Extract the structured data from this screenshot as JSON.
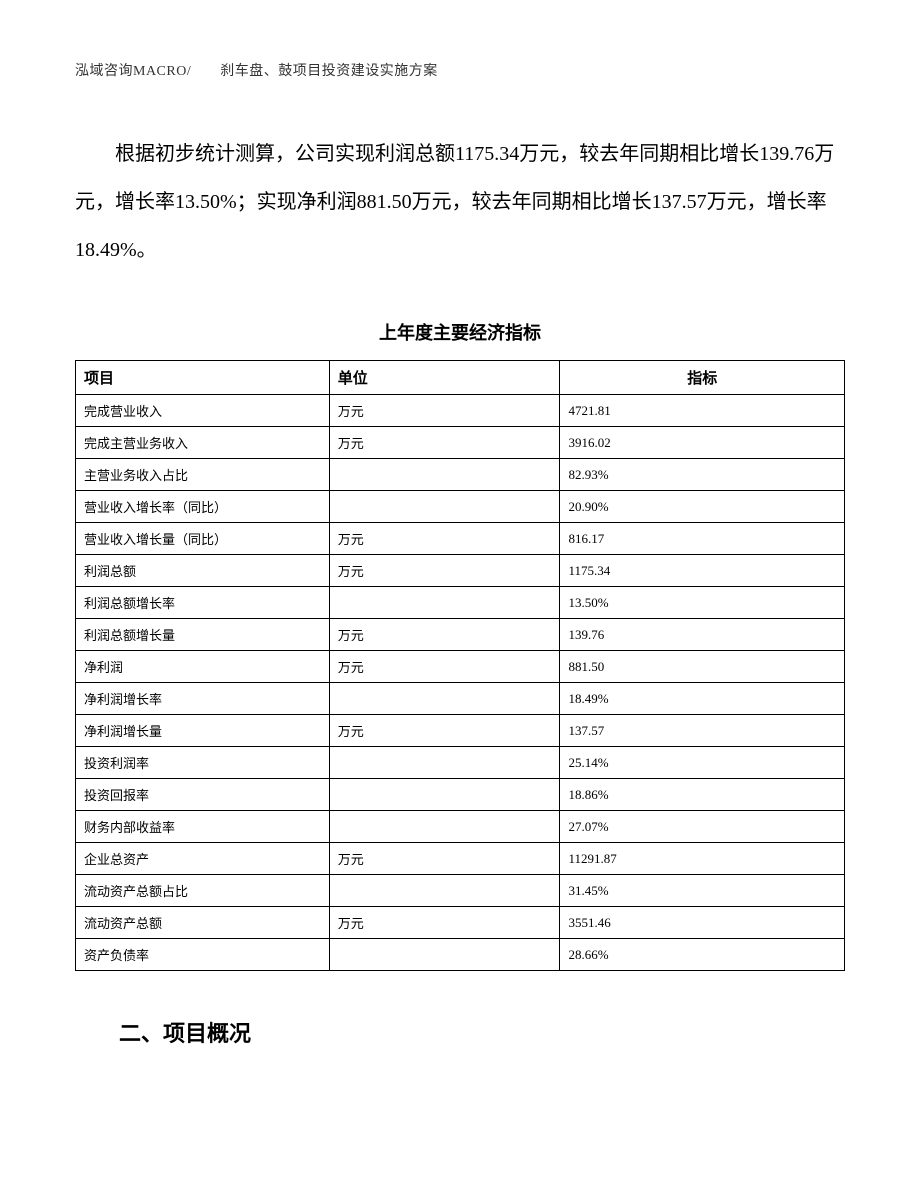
{
  "header": {
    "text": "泓域咨询MACRO/　　刹车盘、鼓项目投资建设实施方案"
  },
  "paragraph": {
    "text": "根据初步统计测算，公司实现利润总额1175.34万元，较去年同期相比增长139.76万元，增长率13.50%；实现净利润881.50万元，较去年同期相比增长137.57万元，增长率18.49%。"
  },
  "table": {
    "title": "上年度主要经济指标",
    "columns": {
      "item": "项目",
      "unit": "单位",
      "value": "指标"
    },
    "rows": [
      {
        "item": "完成营业收入",
        "unit": "万元",
        "value": "4721.81"
      },
      {
        "item": "完成主营业务收入",
        "unit": "万元",
        "value": "3916.02"
      },
      {
        "item": "主营业务收入占比",
        "unit": "",
        "value": "82.93%"
      },
      {
        "item": "营业收入增长率（同比）",
        "unit": "",
        "value": "20.90%"
      },
      {
        "item": "营业收入增长量（同比）",
        "unit": "万元",
        "value": "816.17"
      },
      {
        "item": "利润总额",
        "unit": "万元",
        "value": "1175.34"
      },
      {
        "item": "利润总额增长率",
        "unit": "",
        "value": "13.50%"
      },
      {
        "item": "利润总额增长量",
        "unit": "万元",
        "value": "139.76"
      },
      {
        "item": "净利润",
        "unit": "万元",
        "value": "881.50"
      },
      {
        "item": "净利润增长率",
        "unit": "",
        "value": "18.49%"
      },
      {
        "item": "净利润增长量",
        "unit": "万元",
        "value": "137.57"
      },
      {
        "item": "投资利润率",
        "unit": "",
        "value": "25.14%"
      },
      {
        "item": "投资回报率",
        "unit": "",
        "value": "18.86%"
      },
      {
        "item": "财务内部收益率",
        "unit": "",
        "value": "27.07%"
      },
      {
        "item": "企业总资产",
        "unit": "万元",
        "value": "11291.87"
      },
      {
        "item": "流动资产总额占比",
        "unit": "",
        "value": "31.45%"
      },
      {
        "item": "流动资产总额",
        "unit": "万元",
        "value": "3551.46"
      },
      {
        "item": "资产负债率",
        "unit": "",
        "value": "28.66%"
      }
    ]
  },
  "section_heading": {
    "text": "二、项目概况"
  }
}
